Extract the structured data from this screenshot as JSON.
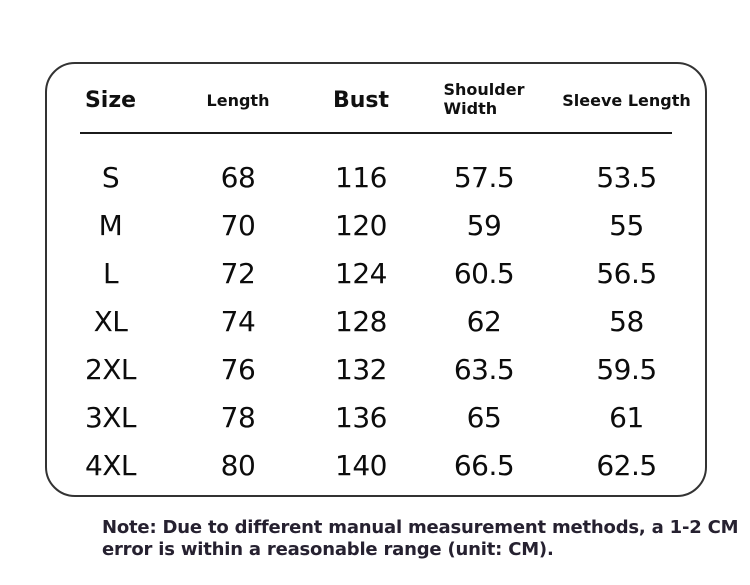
{
  "size_chart": {
    "headers": {
      "size": "Size",
      "length": "Length",
      "bust": "Bust",
      "shoulder_line1": "Shoulder",
      "shoulder_line2": "Width",
      "sleeve": "Sleeve Length"
    },
    "rows": [
      {
        "size": "S",
        "length": "68",
        "bust": "116",
        "shoulder": "57.5",
        "sleeve": "53.5"
      },
      {
        "size": "M",
        "length": "70",
        "bust": "120",
        "shoulder": "59",
        "sleeve": "55"
      },
      {
        "size": "L",
        "length": "72",
        "bust": "124",
        "shoulder": "60.5",
        "sleeve": "56.5"
      },
      {
        "size": "XL",
        "length": "74",
        "bust": "128",
        "shoulder": "62",
        "sleeve": "58"
      },
      {
        "size": "2XL",
        "length": "76",
        "bust": "132",
        "shoulder": "63.5",
        "sleeve": "59.5"
      },
      {
        "size": "3XL",
        "length": "78",
        "bust": "136",
        "shoulder": "65",
        "sleeve": "61"
      },
      {
        "size": "4XL",
        "length": "80",
        "bust": "140",
        "shoulder": "66.5",
        "sleeve": "62.5"
      }
    ]
  },
  "note": {
    "line1": "Note: Due to different manual measurement methods, a 1-2 CM",
    "line2": "error is within a reasonable range (unit: CM)."
  },
  "colors": {
    "page_bg": "#ffffff",
    "border": "#333333",
    "text": "#0f0f0f",
    "note_text": "#262130"
  }
}
